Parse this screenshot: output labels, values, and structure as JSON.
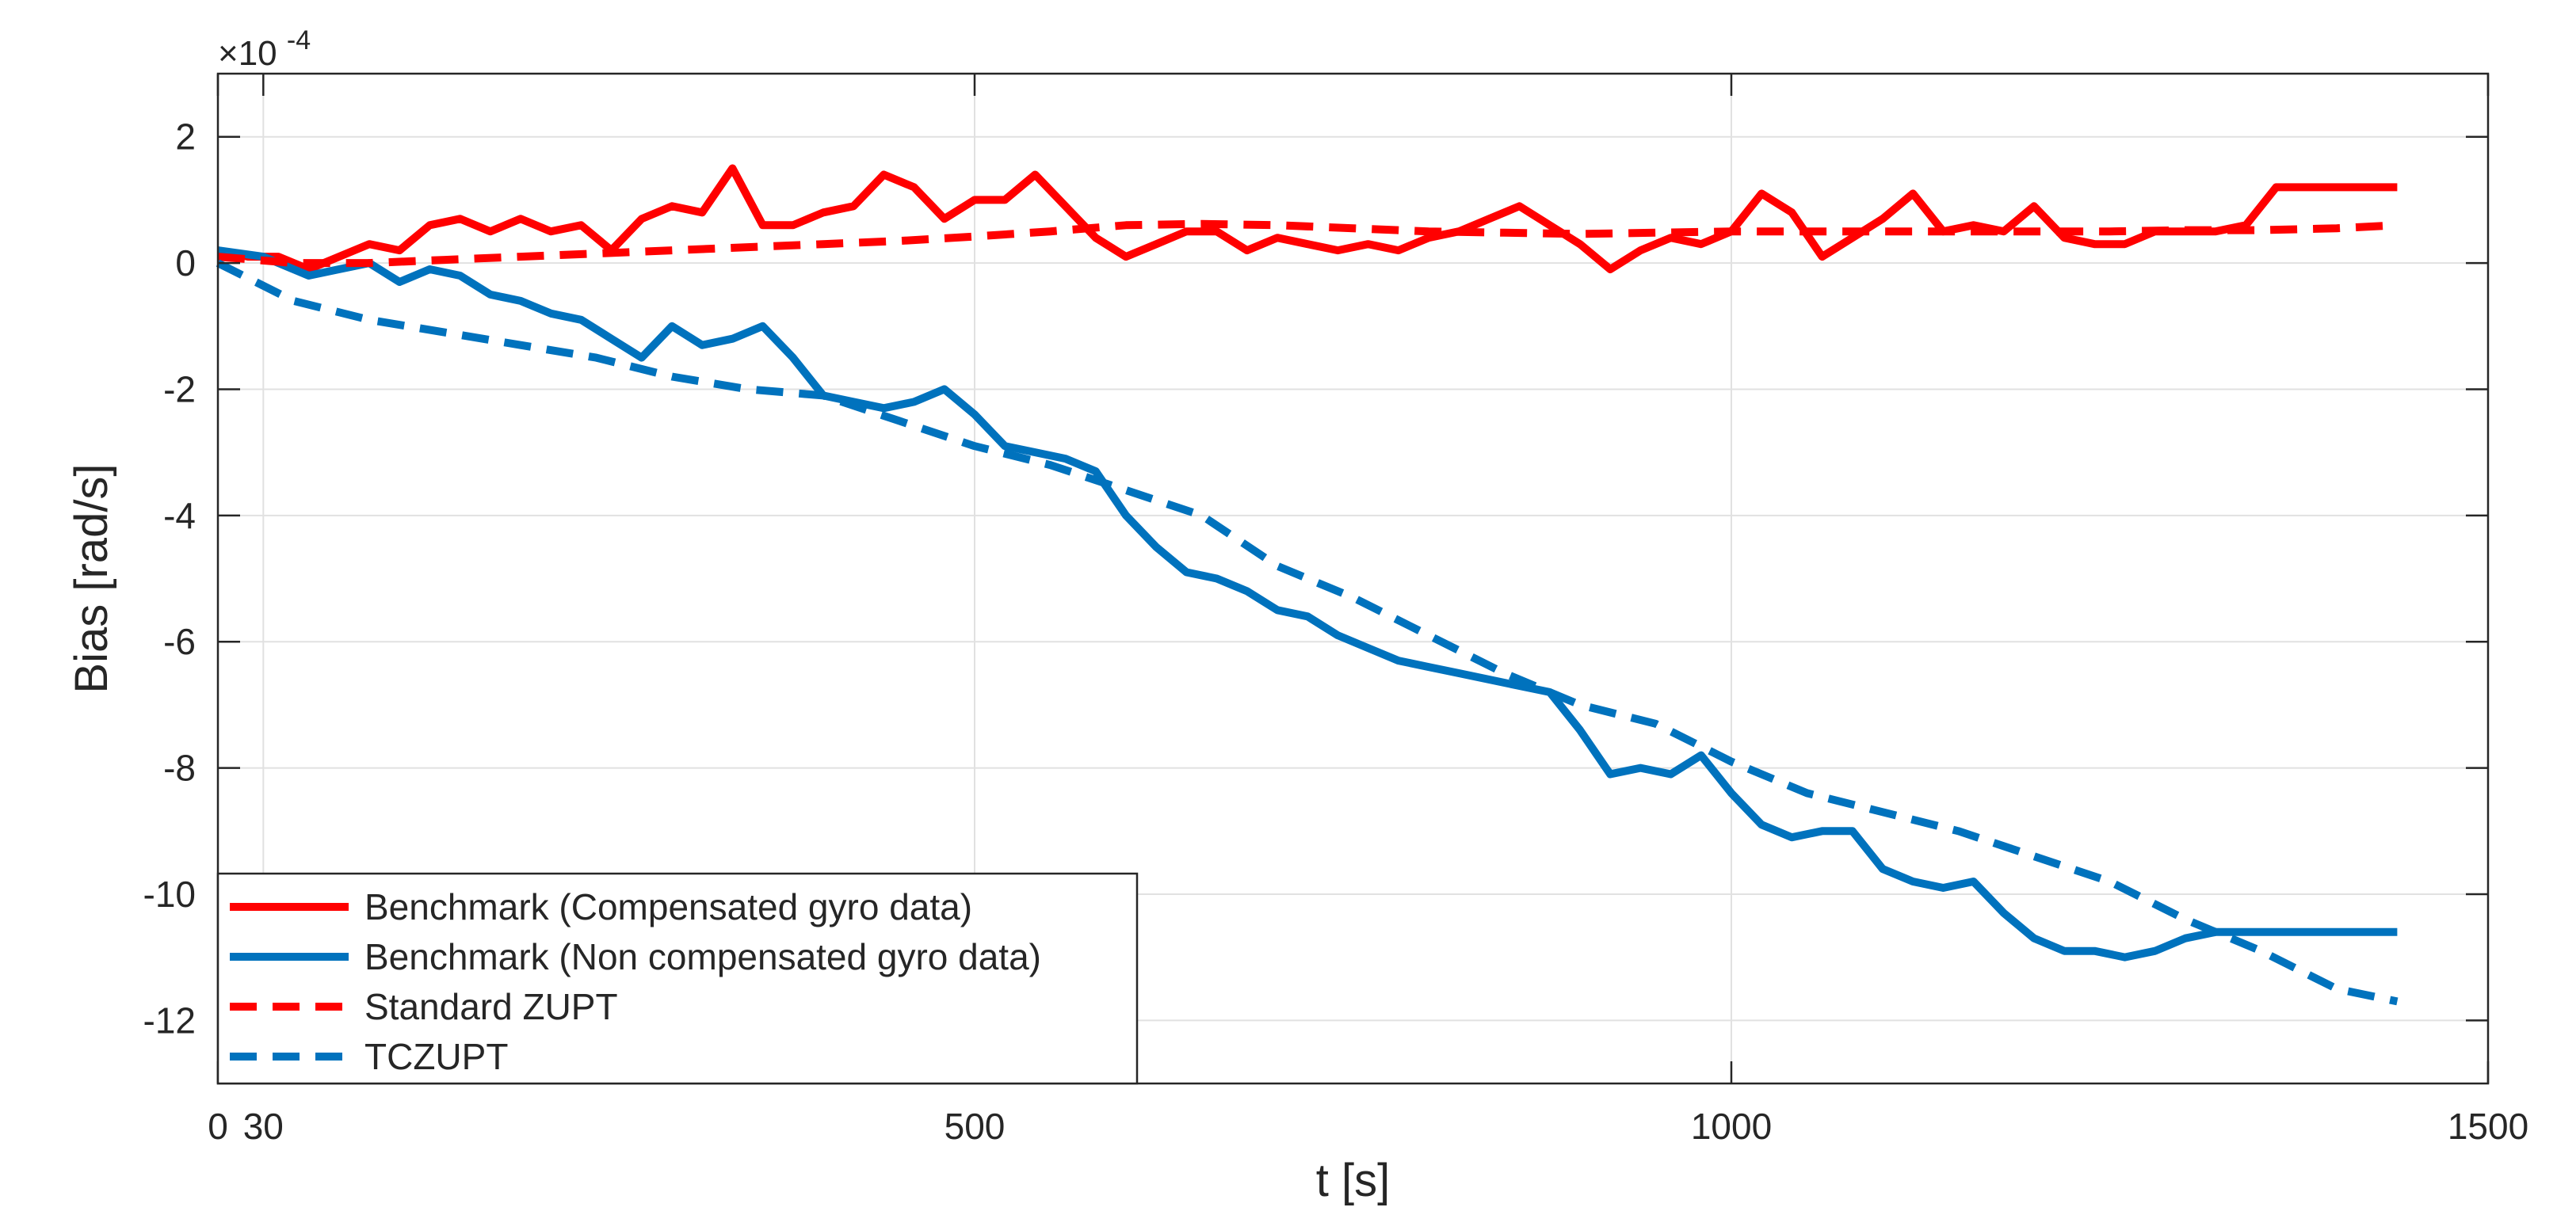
{
  "chart_data": {
    "type": "line",
    "title": "",
    "xlabel": "t [s]",
    "ylabel": "Bias [rad/s]",
    "y_scale_label": "×10",
    "y_scale_exponent": "-4",
    "xlim": [
      0,
      1500
    ],
    "ylim": [
      -13,
      3
    ],
    "x_ticks": [
      0,
      30,
      500,
      1000,
      1500
    ],
    "x_tick_labels": [
      "0",
      "30",
      "500",
      "1000",
      "1500"
    ],
    "y_ticks": [
      2,
      0,
      -2,
      -4,
      -6,
      -8,
      -10,
      -12
    ],
    "y_tick_labels": [
      "2",
      "0",
      "-2",
      "-4",
      "-6",
      "-8",
      "-10",
      "-12"
    ],
    "grid": true,
    "legend_position": "bottom-left",
    "series": [
      {
        "name": "Benchmark (Compensated gyro data)",
        "color": "#ff0000",
        "dash": "solid",
        "x": [
          0,
          20,
          40,
          60,
          80,
          100,
          120,
          140,
          160,
          180,
          200,
          220,
          240,
          260,
          280,
          300,
          320,
          340,
          360,
          380,
          400,
          420,
          440,
          460,
          480,
          500,
          520,
          540,
          560,
          580,
          600,
          620,
          640,
          660,
          680,
          700,
          720,
          740,
          760,
          780,
          800,
          820,
          840,
          860,
          880,
          900,
          920,
          940,
          960,
          980,
          1000,
          1020,
          1040,
          1060,
          1080,
          1100,
          1120,
          1140,
          1160,
          1180,
          1200,
          1220,
          1240,
          1260,
          1280,
          1300,
          1320,
          1340,
          1360,
          1380,
          1400,
          1420,
          1440
        ],
        "values": [
          0.2,
          0.1,
          0.1,
          -0.1,
          0.1,
          0.3,
          0.2,
          0.6,
          0.7,
          0.5,
          0.7,
          0.5,
          0.6,
          0.2,
          0.7,
          0.9,
          0.8,
          1.5,
          0.6,
          0.6,
          0.8,
          0.9,
          1.4,
          1.2,
          0.7,
          1.0,
          1.0,
          1.4,
          0.9,
          0.4,
          0.1,
          0.3,
          0.5,
          0.5,
          0.2,
          0.4,
          0.3,
          0.2,
          0.3,
          0.2,
          0.4,
          0.5,
          0.7,
          0.9,
          0.6,
          0.3,
          -0.1,
          0.2,
          0.4,
          0.3,
          0.5,
          1.1,
          0.8,
          0.1,
          0.4,
          0.7,
          1.1,
          0.5,
          0.6,
          0.5,
          0.9,
          0.4,
          0.3,
          0.3,
          0.5,
          0.5,
          0.5,
          0.6,
          1.2,
          1.2,
          1.2,
          1.2,
          1.2
        ]
      },
      {
        "name": "Benchmark (Non compensated gyro data)",
        "color": "#0072bd",
        "dash": "solid",
        "x": [
          0,
          30,
          60,
          80,
          100,
          120,
          140,
          160,
          180,
          200,
          220,
          240,
          260,
          280,
          300,
          320,
          340,
          360,
          380,
          400,
          420,
          440,
          460,
          480,
          500,
          520,
          540,
          560,
          580,
          600,
          620,
          640,
          660,
          680,
          700,
          720,
          740,
          760,
          780,
          800,
          820,
          840,
          860,
          880,
          900,
          920,
          940,
          960,
          980,
          1000,
          1020,
          1040,
          1060,
          1080,
          1100,
          1120,
          1140,
          1160,
          1180,
          1200,
          1220,
          1240,
          1260,
          1280,
          1300,
          1320,
          1340,
          1360,
          1380,
          1400,
          1420,
          1440
        ],
        "values": [
          0.2,
          0.1,
          -0.2,
          -0.1,
          0.0,
          -0.3,
          -0.1,
          -0.2,
          -0.5,
          -0.6,
          -0.8,
          -0.9,
          -1.2,
          -1.5,
          -1.0,
          -1.3,
          -1.2,
          -1.0,
          -1.5,
          -2.1,
          -2.2,
          -2.3,
          -2.2,
          -2.0,
          -2.4,
          -2.9,
          -3.0,
          -3.1,
          -3.3,
          -4.0,
          -4.5,
          -4.9,
          -5.0,
          -5.2,
          -5.5,
          -5.6,
          -5.9,
          -6.1,
          -6.3,
          -6.4,
          -6.5,
          -6.6,
          -6.7,
          -6.8,
          -7.4,
          -8.1,
          -8.0,
          -8.1,
          -7.8,
          -8.4,
          -8.9,
          -9.1,
          -9.0,
          -9.0,
          -9.6,
          -9.8,
          -9.9,
          -9.8,
          -10.3,
          -10.7,
          -10.9,
          -10.9,
          -11.0,
          -10.9,
          -10.7,
          -10.6,
          -10.6,
          -10.6,
          -10.6,
          -10.6,
          -10.6,
          -10.6
        ]
      },
      {
        "name": "Standard ZUPT",
        "color": "#ff0000",
        "dash": "dashed",
        "x": [
          0,
          50,
          100,
          150,
          200,
          250,
          300,
          350,
          400,
          450,
          500,
          550,
          600,
          650,
          700,
          750,
          800,
          850,
          900,
          950,
          1000,
          1050,
          1100,
          1150,
          1200,
          1250,
          1300,
          1350,
          1400,
          1440
        ],
        "values": [
          0.1,
          0.0,
          0.0,
          0.05,
          0.1,
          0.15,
          0.2,
          0.25,
          0.3,
          0.35,
          0.42,
          0.5,
          0.6,
          0.62,
          0.6,
          0.55,
          0.5,
          0.48,
          0.46,
          0.48,
          0.5,
          0.5,
          0.5,
          0.5,
          0.5,
          0.5,
          0.52,
          0.52,
          0.55,
          0.6
        ]
      },
      {
        "name": "TCZUPT",
        "color": "#0072bd",
        "dash": "dashed",
        "x": [
          0,
          50,
          100,
          150,
          200,
          250,
          300,
          350,
          400,
          450,
          500,
          550,
          600,
          650,
          700,
          750,
          800,
          850,
          900,
          950,
          1000,
          1050,
          1100,
          1150,
          1200,
          1250,
          1300,
          1350,
          1400,
          1440
        ],
        "values": [
          0.0,
          -0.6,
          -0.9,
          -1.1,
          -1.3,
          -1.5,
          -1.8,
          -2.0,
          -2.1,
          -2.5,
          -2.9,
          -3.2,
          -3.6,
          -4.0,
          -4.8,
          -5.3,
          -5.9,
          -6.5,
          -7.0,
          -7.3,
          -7.9,
          -8.4,
          -8.7,
          -9.0,
          -9.4,
          -9.8,
          -10.4,
          -10.9,
          -11.5,
          -11.7
        ]
      }
    ]
  }
}
